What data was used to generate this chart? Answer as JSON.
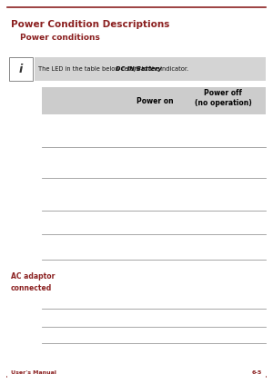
{
  "page_bg": "#ffffff",
  "content_bg": "#000000",
  "title_line1": "Power Condition Descriptions",
  "title_line2": "Power conditions",
  "title_color": "#8B2020",
  "top_rule_color": "#8B2020",
  "bottom_rule_color": "#8B2020",
  "footer_left": "User's Manual",
  "footer_right": "6-5",
  "footer_color": "#8B2020",
  "info_box_bg": "#d4d4d4",
  "info_box_text": "The LED in the table below refers to the ",
  "info_box_bold": "DC IN/Battery",
  "info_box_text2": " indicator.",
  "info_icon_bg": "#ffffff",
  "info_icon_border": "#888888",
  "table_header_bg": "#cccccc",
  "table_header_col1": "Power on",
  "table_header_col2": "Power off\n(no operation)",
  "table_header_color": "#000000",
  "table_line_color": "#999999",
  "section2_label": "AC adaptor\nconnected",
  "section2_label_color": "#8B2020"
}
